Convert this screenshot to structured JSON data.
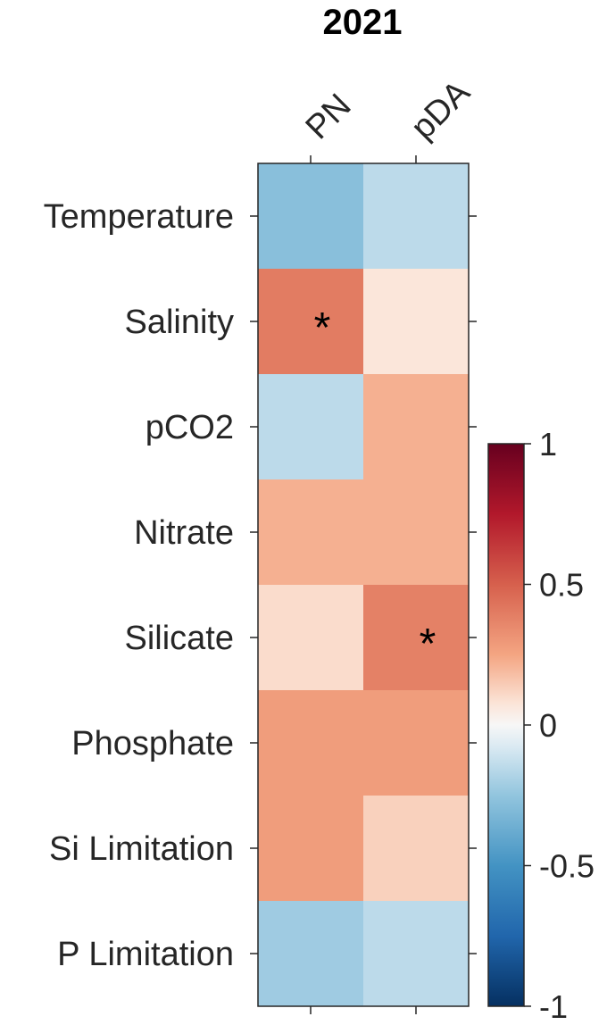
{
  "chart_data": {
    "type": "heatmap",
    "title": "2021",
    "columns": [
      "PN",
      "pDA"
    ],
    "rows": [
      "Temperature",
      "Salinity",
      "pCO2",
      "Nitrate",
      "Silicate",
      "Phosphate",
      "Si Limitation",
      "P Limitation"
    ],
    "values": [
      [
        -0.28,
        -0.15
      ],
      [
        0.4,
        0.07
      ],
      [
        -0.15,
        0.22
      ],
      [
        0.22,
        0.22
      ],
      [
        0.1,
        0.38
      ],
      [
        0.28,
        0.28
      ],
      [
        0.28,
        0.13
      ],
      [
        -0.22,
        -0.15
      ]
    ],
    "significance_marker": "*",
    "significant": [
      [
        false,
        false
      ],
      [
        true,
        false
      ],
      [
        false,
        false
      ],
      [
        false,
        false
      ],
      [
        false,
        true
      ],
      [
        false,
        false
      ],
      [
        false,
        false
      ],
      [
        false,
        false
      ]
    ],
    "colorbar": {
      "range": [
        -1,
        1
      ],
      "ticks": [
        1,
        0.5,
        0,
        -0.5,
        -1
      ],
      "tick_labels": [
        "1",
        "0.5",
        "0",
        "-0.5",
        "-1"
      ]
    },
    "colormap": "red-blue diverging"
  }
}
